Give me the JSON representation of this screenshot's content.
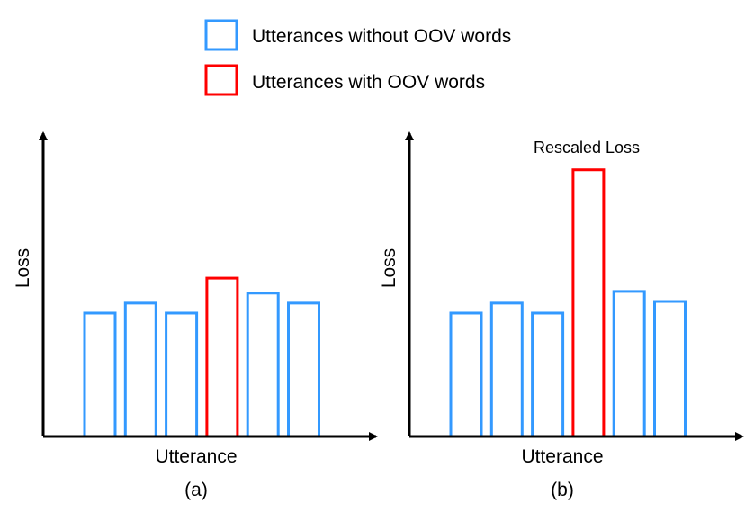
{
  "legend": {
    "items": [
      {
        "label": "Utterances without OOV words",
        "color": "#3399ff"
      },
      {
        "label": "Utterances with OOV words",
        "color": "#ff0000"
      }
    ]
  },
  "chart_data": [
    {
      "type": "bar",
      "panel_label": "(a)",
      "xlabel": "Utterance",
      "ylabel": "Loss",
      "ylim": [
        0,
        9.1
      ],
      "grid": false,
      "values": [
        3.7,
        4.0,
        3.7,
        4.75,
        4.3,
        4.0
      ],
      "colors": [
        "#3399ff",
        "#3399ff",
        "#3399ff",
        "#ff0000",
        "#3399ff",
        "#3399ff"
      ],
      "annotation": ""
    },
    {
      "type": "bar",
      "panel_label": "(b)",
      "xlabel": "Utterance",
      "ylabel": "Loss",
      "ylim": [
        0,
        9.1
      ],
      "grid": false,
      "values": [
        3.7,
        4.0,
        3.7,
        8.0,
        4.35,
        4.05
      ],
      "colors": [
        "#3399ff",
        "#3399ff",
        "#3399ff",
        "#ff0000",
        "#3399ff",
        "#3399ff"
      ],
      "annotation": "Rescaled Loss"
    }
  ]
}
